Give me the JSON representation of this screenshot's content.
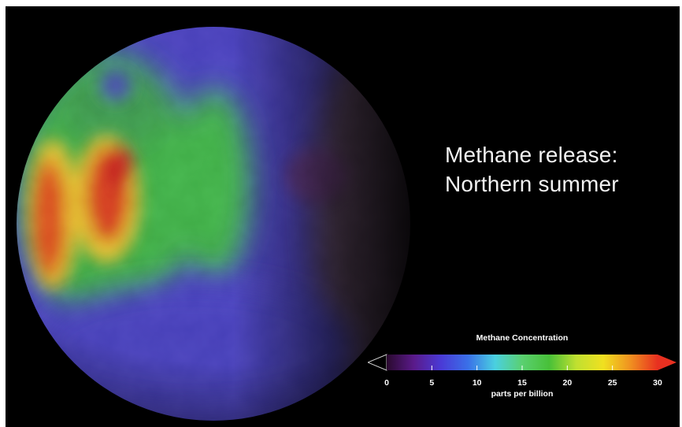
{
  "title_lines": [
    "Methane release:",
    "Northern summer"
  ],
  "legend": {
    "title": "Methane Concentration",
    "unit": "parts per billion",
    "range": [
      0,
      30
    ],
    "ticks": [
      "0",
      "5",
      "10",
      "15",
      "20",
      "25",
      "30"
    ],
    "colors": [
      "#2a0a2e",
      "#5a1a8a",
      "#4a3ad6",
      "#3a70e8",
      "#4ad0e0",
      "#5ad070",
      "#48c038",
      "#c0e030",
      "#f0e020",
      "#f09020",
      "#e83020"
    ]
  },
  "colors": {
    "background": "#000000",
    "planet_base": "#4a42c0",
    "text": "#f2f2f2"
  }
}
